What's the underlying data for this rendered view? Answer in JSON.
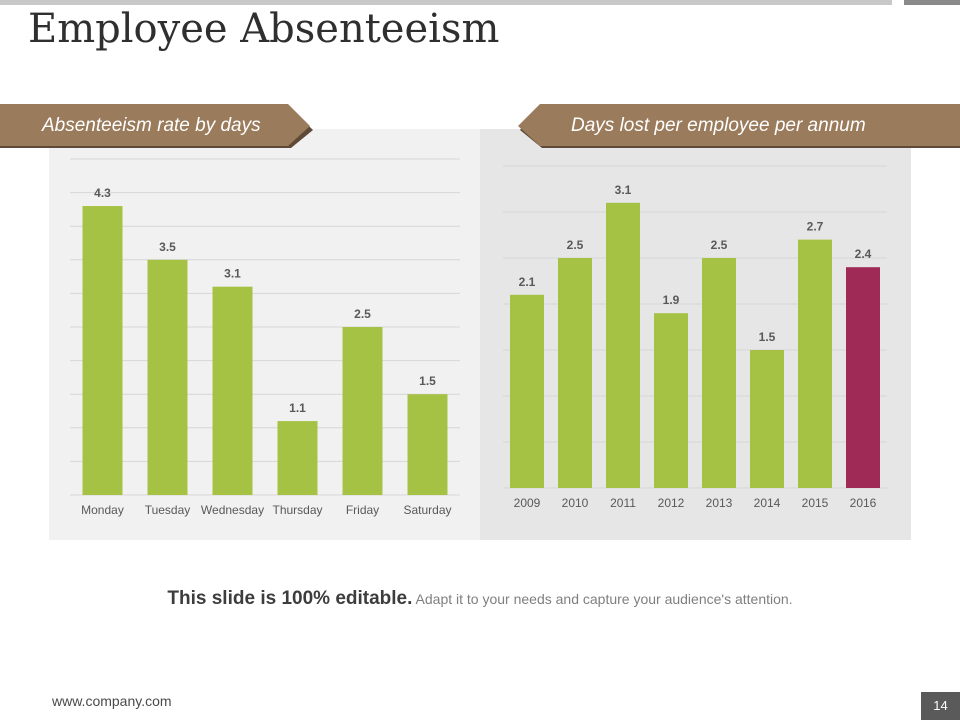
{
  "slide": {
    "title": "Employee Absenteeism",
    "left_banner": "Absenteeism rate by days",
    "right_banner": "Days lost per employee per annum",
    "footer_bold": "This slide is 100% editable.",
    "footer_rest": "Adapt it to your needs and capture your audience's attention.",
    "website": "www.company.com",
    "page_number": "14"
  },
  "colors": {
    "bar_green": "#a6c245",
    "bar_highlight": "#9e2a55",
    "banner_brown": "#9a7b5c",
    "banner_shadow": "#5e4a37",
    "grid": "#d6d6d6",
    "label": "#595959"
  },
  "chart_data": [
    {
      "type": "bar",
      "title": "Absenteeism rate by days",
      "categories": [
        "Monday",
        "Tuesday",
        "Wednesday",
        "Thursday",
        "Friday",
        "Saturday"
      ],
      "values": [
        4.3,
        3.5,
        3.1,
        1.1,
        2.5,
        1.5
      ],
      "value_labels": [
        "4.3",
        "3.5",
        "3.1",
        "1.1",
        "2.5",
        "1.5"
      ],
      "ylim": [
        0,
        5
      ],
      "grid": true,
      "xlabel": "",
      "ylabel": ""
    },
    {
      "type": "bar",
      "title": "Days lost per employee per annum",
      "categories": [
        "2009",
        "2010",
        "2011",
        "2012",
        "2013",
        "2014",
        "2015",
        "2016"
      ],
      "values": [
        2.1,
        2.5,
        3.1,
        1.9,
        2.5,
        1.5,
        2.7,
        2.4
      ],
      "value_labels": [
        "2.1",
        "2.5",
        "3.1",
        "1.9",
        "2.5",
        "1.5",
        "2.7",
        "2.4"
      ],
      "highlight_index": 7,
      "ylim": [
        0,
        3.5
      ],
      "grid": true,
      "xlabel": "",
      "ylabel": ""
    }
  ]
}
